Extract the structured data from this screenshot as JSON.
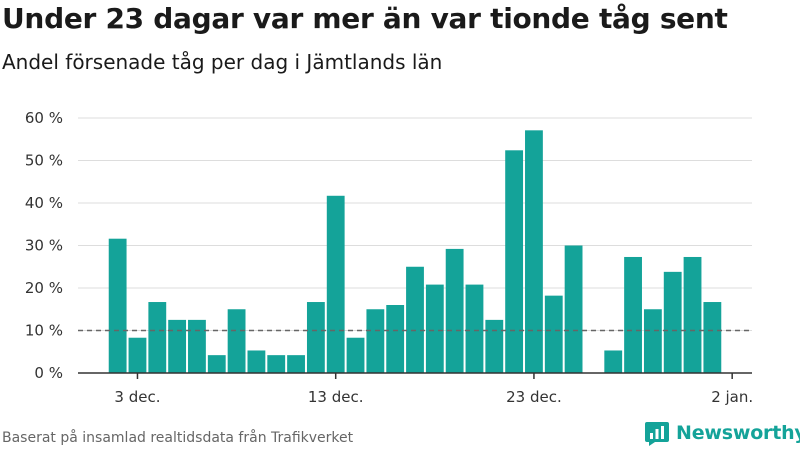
{
  "header": {
    "title": "Under 23 dagar var mer än var tionde tåg sent",
    "subtitle": "Andel försenade tåg per dag i Jämtlands län"
  },
  "footer": {
    "source": "Baserat på insamlad realtidsdata från Trafikverket",
    "brand": "Newsworthy"
  },
  "colors": {
    "bar": "#14a399",
    "reference_line": "#666666",
    "gridline": "#dddddd",
    "brand": "#14a399"
  },
  "chart_data": {
    "type": "bar",
    "title": "Under 23 dagar var mer än var tionde tåg sent",
    "subtitle": "Andel försenade tåg per dag i Jämtlands län",
    "xlabel": "",
    "ylabel": "",
    "y_unit": "%",
    "ylim": [
      0,
      60
    ],
    "y_ticks": [
      0,
      10,
      20,
      30,
      40,
      50,
      60
    ],
    "y_tick_labels": [
      "0 %",
      "10 %",
      "20 %",
      "30 %",
      "40 %",
      "50 %",
      "60 %"
    ],
    "x_tick_labels": [
      {
        "label": "3 dec.",
        "date": "2023-12-03"
      },
      {
        "label": "13 dec.",
        "date": "2023-12-13"
      },
      {
        "label": "23 dec.",
        "date": "2023-12-23"
      },
      {
        "label": "2 jan.",
        "date": "2024-01-02"
      }
    ],
    "xlim": [
      "2023-11-30",
      "2024-01-03"
    ],
    "grid": true,
    "reference_line": {
      "value": 10,
      "style": "dashed"
    },
    "categories": [
      "2023-12-02",
      "2023-12-03",
      "2023-12-04",
      "2023-12-05",
      "2023-12-06",
      "2023-12-07",
      "2023-12-08",
      "2023-12-09",
      "2023-12-10",
      "2023-12-11",
      "2023-12-12",
      "2023-12-13",
      "2023-12-14",
      "2023-12-15",
      "2023-12-16",
      "2023-12-17",
      "2023-12-18",
      "2023-12-19",
      "2023-12-20",
      "2023-12-21",
      "2023-12-22",
      "2023-12-23",
      "2023-12-24",
      "2023-12-25",
      "2023-12-26",
      "2023-12-27",
      "2023-12-28",
      "2023-12-29",
      "2023-12-30",
      "2023-12-31",
      "2024-01-01"
    ],
    "values": [
      31.6,
      8.3,
      16.7,
      12.5,
      12.5,
      4.2,
      15.0,
      5.3,
      4.2,
      4.2,
      16.7,
      41.7,
      8.3,
      15.0,
      16.0,
      25.0,
      20.8,
      29.2,
      20.8,
      12.5,
      52.4,
      57.1,
      18.2,
      30.0,
      null,
      5.3,
      27.3,
      15.0,
      23.8,
      27.3,
      16.7
    ]
  }
}
